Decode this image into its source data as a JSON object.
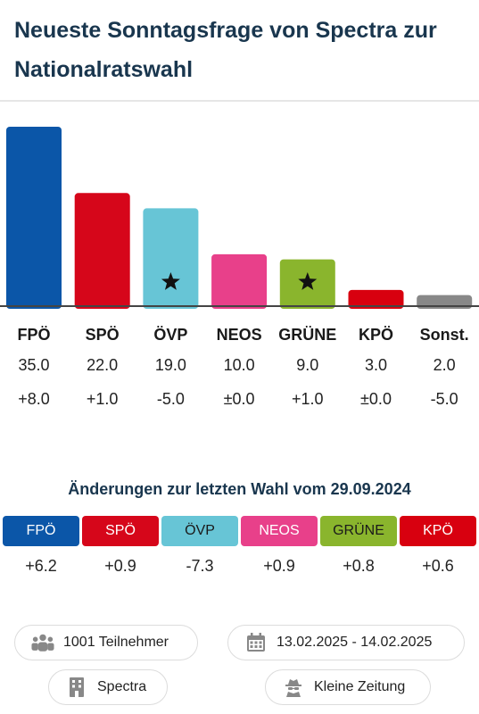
{
  "title": "Neueste Sonntagsfrage von Spectra zur Nationalratswahl",
  "chart_data": {
    "type": "bar",
    "categories": [
      "FPÖ",
      "SPÖ",
      "ÖVP",
      "NEOS",
      "GRÜNE",
      "KPÖ",
      "Sonst."
    ],
    "values": [
      35.0,
      22.0,
      19.0,
      10.0,
      9.0,
      3.0,
      2.0
    ],
    "value_labels": [
      "35.0",
      "22.0",
      "19.0",
      "10.0",
      "9.0",
      "3.0",
      "2.0"
    ],
    "diff_labels": [
      "+8.0",
      "+1.0",
      "-5.0",
      "±0.0",
      "+1.0",
      "±0.0",
      "-5.0"
    ],
    "colors": [
      "#0b56a8",
      "#d6061a",
      "#67c5d6",
      "#e8408a",
      "#8ab52d",
      "#d8000f",
      "#888888"
    ],
    "government_parties": [
      "ÖVP",
      "GRÜNE"
    ],
    "ylim": [
      0,
      35
    ]
  },
  "changes": {
    "heading": "Änderungen zur letzten Wahl vom 29.09.2024",
    "items": [
      {
        "party": "FPÖ",
        "diff": "+6.2",
        "bg": "#0b56a8",
        "fg": "#ffffff"
      },
      {
        "party": "SPÖ",
        "diff": "+0.9",
        "bg": "#d6061a",
        "fg": "#ffffff"
      },
      {
        "party": "ÖVP",
        "diff": "-7.3",
        "bg": "#67c5d6",
        "fg": "#1a1a1a"
      },
      {
        "party": "NEOS",
        "diff": "+0.9",
        "bg": "#e8408a",
        "fg": "#ffffff"
      },
      {
        "party": "GRÜNE",
        "diff": "+0.8",
        "bg": "#8ab52d",
        "fg": "#1a1a1a"
      },
      {
        "party": "KPÖ",
        "diff": "+0.6",
        "bg": "#d8000f",
        "fg": "#ffffff"
      }
    ]
  },
  "info": {
    "participants": "1001 Teilnehmer",
    "period": "13.02.2025 - 14.02.2025",
    "institute": "Spectra",
    "client": "Kleine Zeitung",
    "icons": [
      "people-icon",
      "calendar-icon",
      "building-icon",
      "spy-icon"
    ]
  }
}
